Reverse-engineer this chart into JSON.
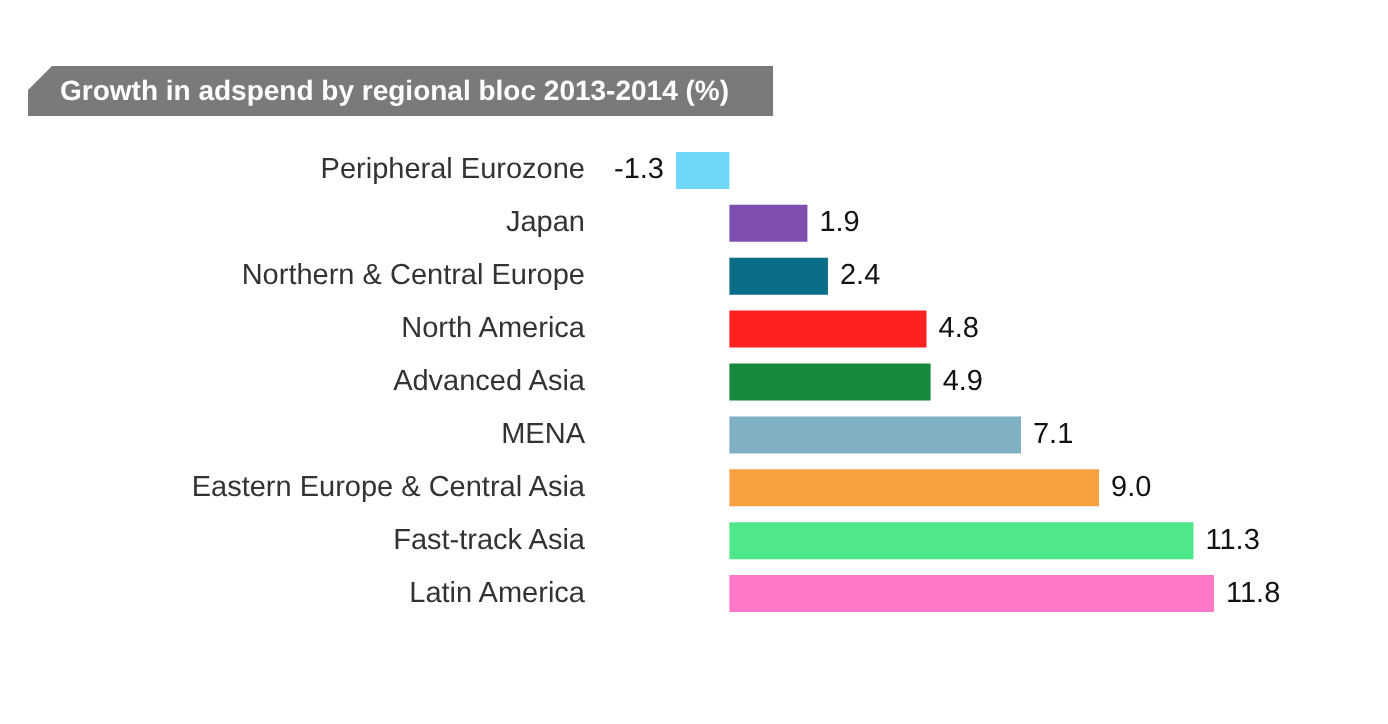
{
  "chart_data": {
    "type": "bar",
    "orientation": "horizontal",
    "title": "Growth in adspend by regional bloc 2013-2014 (%)",
    "categories": [
      "Peripheral Eurozone",
      "Japan",
      "Northern & Central Europe",
      "North America",
      "Advanced Asia",
      "MENA",
      "Eastern Europe & Central Asia",
      "Fast-track Asia",
      "Latin America"
    ],
    "values": [
      -1.3,
      1.9,
      2.4,
      4.8,
      4.9,
      7.1,
      9.0,
      11.3,
      11.8
    ],
    "value_labels": [
      "-1.3",
      "1.9",
      "2.4",
      "4.8",
      "4.9",
      "7.1",
      "9.0",
      "11.3",
      "11.8"
    ],
    "colors": [
      "#6fd8f8",
      "#7f4fb0",
      "#0b6e88",
      "#ff2020",
      "#168a3c",
      "#7fb0c4",
      "#f7a040",
      "#4ee88a",
      "#ff78c8"
    ]
  }
}
